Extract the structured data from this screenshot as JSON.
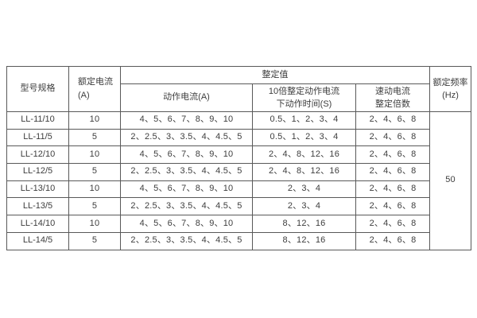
{
  "table": {
    "headers": {
      "model": "型号规格",
      "rated_current_line1": "额定电流",
      "rated_current_line2": "(A)",
      "setting_value": "整定值",
      "operating_current": "动作电流(A)",
      "operating_time_line1": "10倍整定动作电流",
      "operating_time_line2": "下动作时间(S)",
      "quick_current_line1": "速动电流",
      "quick_current_line2": "整定倍数",
      "rated_frequency_line1": "额定频率",
      "rated_frequency_line2": "(Hz)"
    },
    "rows": [
      {
        "model": "LL-11/10",
        "rated_current": "10",
        "operating_current": "4、5、6、7、8、9、10",
        "operating_time": "0.5、1、2、3、4",
        "quick_multiple": "2、4、6、8"
      },
      {
        "model": "LL-11/5",
        "rated_current": "5",
        "operating_current": "2、2.5、3、3.5、4、4.5、5",
        "operating_time": "0.5、1、2、3、4",
        "quick_multiple": "2、4、6、8"
      },
      {
        "model": "LL-12/10",
        "rated_current": "10",
        "operating_current": "4、5、6、7、8、9、10",
        "operating_time": "2、4、8、12、16",
        "quick_multiple": "2、4、6、8"
      },
      {
        "model": "LL-12/5",
        "rated_current": "5",
        "operating_current": "2、2.5、3、3.5、4、4.5、5",
        "operating_time": "2、4、8、12、16",
        "quick_multiple": "2、4、6、8"
      },
      {
        "model": "LL-13/10",
        "rated_current": "10",
        "operating_current": "4、5、6、7、8、9、10",
        "operating_time": "2、3、4",
        "quick_multiple": "2、4、6、8"
      },
      {
        "model": "LL-13/5",
        "rated_current": "5",
        "operating_current": "2、2.5、3、3.5、4、4.5、5",
        "operating_time": "2、3、4",
        "quick_multiple": "2、4、6、8"
      },
      {
        "model": "LL-14/10",
        "rated_current": "10",
        "operating_current": "4、5、6、7、8、9、10",
        "operating_time": "8、12、16",
        "quick_multiple": "2、4、6、8"
      },
      {
        "model": "LL-14/5",
        "rated_current": "5",
        "operating_current": "2、2.5、3、3.5、4、4.5、5",
        "operating_time": "8、12、16",
        "quick_multiple": "2、4、6、8"
      }
    ],
    "rated_frequency_value": "50"
  }
}
